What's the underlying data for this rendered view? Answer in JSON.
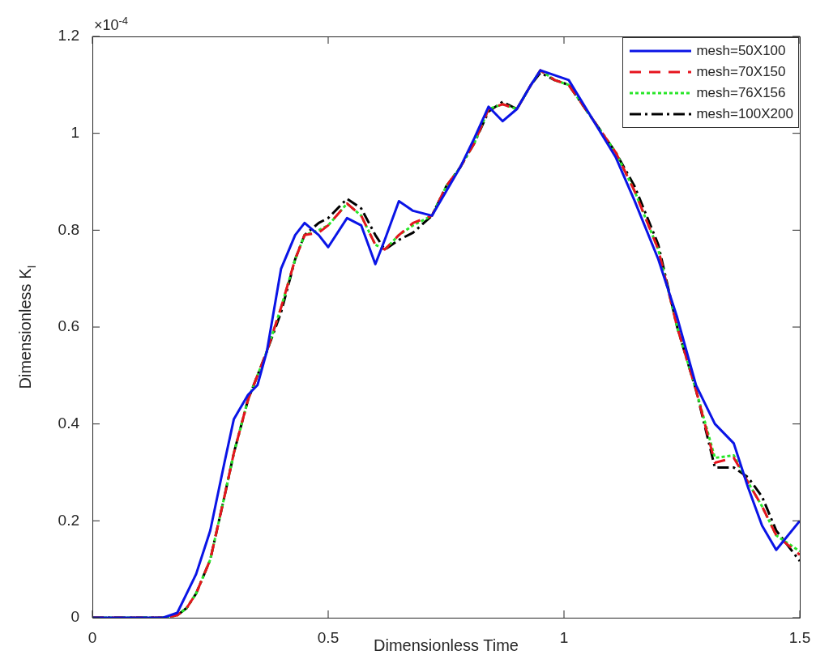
{
  "chart_data": {
    "type": "line",
    "xlabel": "Dimensionless Time",
    "ylabel": "Dimensionless K$_{I}$",
    "annotations": [
      "×10$^{-4}$"
    ],
    "x": [
      0,
      0.15,
      0.18,
      0.2,
      0.22,
      0.25,
      0.28,
      0.3,
      0.33,
      0.35,
      0.37,
      0.4,
      0.43,
      0.45,
      0.48,
      0.5,
      0.54,
      0.57,
      0.6,
      0.62,
      0.65,
      0.68,
      0.72,
      0.75,
      0.78,
      0.81,
      0.84,
      0.87,
      0.9,
      0.93,
      0.95,
      0.98,
      1.01,
      1.11,
      1.15,
      1.2,
      1.24,
      1.28,
      1.32,
      1.36,
      1.39,
      1.42,
      1.45,
      1.5
    ],
    "series": [
      {
        "name": "mesh=50X100",
        "color": "#0a14e6",
        "line_style": "solid",
        "values": [
          0,
          0,
          0.01,
          0.05,
          0.09,
          0.18,
          0.32,
          0.41,
          0.46,
          0.48,
          0.55,
          0.72,
          0.79,
          0.815,
          0.79,
          0.765,
          0.825,
          0.81,
          0.73,
          0.78,
          0.86,
          0.84,
          0.83,
          0.88,
          0.93,
          0.99,
          1.055,
          1.025,
          1.05,
          1.1,
          1.13,
          1.12,
          1.11,
          0.95,
          0.86,
          0.74,
          0.62,
          0.48,
          0.4,
          0.36,
          0.27,
          0.19,
          0.14,
          0.2
        ]
      },
      {
        "name": "mesh=70X150",
        "color": "#e6141e",
        "line_style": "dashed",
        "values": [
          0,
          0,
          0.005,
          0.02,
          0.05,
          0.12,
          0.25,
          0.34,
          0.45,
          0.5,
          0.55,
          0.64,
          0.74,
          0.79,
          0.795,
          0.81,
          0.855,
          0.83,
          0.77,
          0.76,
          0.79,
          0.815,
          0.83,
          0.89,
          0.93,
          0.98,
          1.05,
          1.06,
          1.05,
          1.1,
          1.13,
          1.11,
          1.1,
          0.96,
          0.88,
          0.76,
          0.6,
          0.47,
          0.32,
          0.33,
          0.28,
          0.23,
          0.17,
          0.13
        ]
      },
      {
        "name": "mesh=76X156",
        "color": "#28e628",
        "line_style": "dotted",
        "values": [
          0,
          0,
          0.005,
          0.02,
          0.05,
          0.12,
          0.25,
          0.34,
          0.45,
          0.5,
          0.55,
          0.64,
          0.74,
          0.79,
          0.8,
          0.81,
          0.855,
          0.83,
          0.77,
          0.76,
          0.79,
          0.81,
          0.83,
          0.89,
          0.93,
          0.98,
          1.05,
          1.06,
          1.05,
          1.1,
          1.13,
          1.11,
          1.1,
          0.96,
          0.88,
          0.76,
          0.6,
          0.47,
          0.33,
          0.335,
          0.28,
          0.23,
          0.17,
          0.137
        ]
      },
      {
        "name": "mesh=100X200",
        "color": "#000000",
        "line_style": "dashdot",
        "values": [
          0,
          0,
          0.005,
          0.02,
          0.05,
          0.12,
          0.25,
          0.34,
          0.45,
          0.5,
          0.55,
          0.63,
          0.74,
          0.79,
          0.815,
          0.825,
          0.865,
          0.845,
          0.79,
          0.76,
          0.78,
          0.795,
          0.83,
          0.89,
          0.93,
          0.98,
          1.045,
          1.065,
          1.05,
          1.1,
          1.125,
          1.11,
          1.1,
          0.96,
          0.89,
          0.77,
          0.6,
          0.47,
          0.31,
          0.31,
          0.29,
          0.25,
          0.18,
          0.117
        ]
      }
    ],
    "xlim": [
      0,
      1.5
    ],
    "xticks": [
      0,
      0.5,
      1,
      1.5
    ],
    "ylim": [
      0,
      1.2
    ],
    "yticks": [
      0,
      0.2,
      0.4,
      0.6,
      0.8,
      1,
      1.2
    ],
    "grid": false,
    "legend": "top right",
    "marker": "none"
  }
}
